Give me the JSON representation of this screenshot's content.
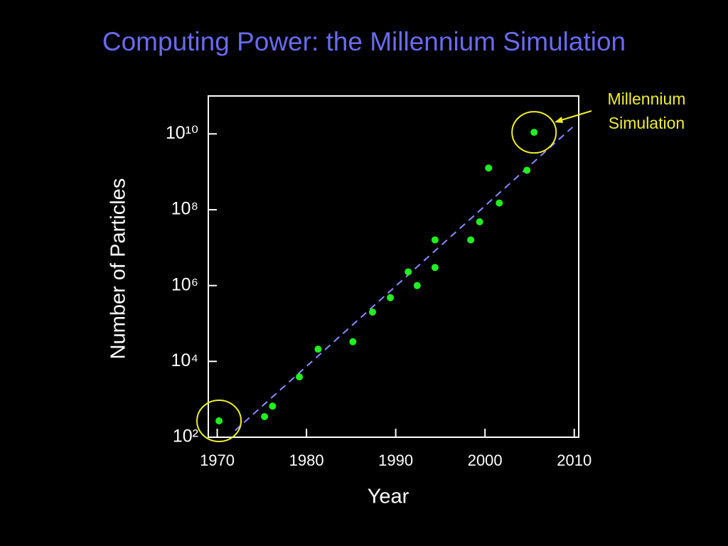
{
  "chart_data": {
    "type": "scatter",
    "title": "Computing Power: the Millennium Simulation",
    "x_label": "Year",
    "y_label": "Number of Particles",
    "yscale": "log",
    "xlim": [
      1969,
      2010.5
    ],
    "ylim": [
      100,
      100000000000
    ],
    "xticks": [
      1970,
      1980,
      1990,
      2000,
      2010
    ],
    "yticks": [
      {
        "value": 100,
        "label": "10²"
      },
      {
        "value": 10000,
        "label": "10⁴"
      },
      {
        "value": 1000000,
        "label": "10⁶"
      },
      {
        "value": 100000000,
        "label": "10⁸"
      },
      {
        "value": 10000000000,
        "label": "10¹⁰"
      }
    ],
    "color": "#22ee22",
    "x": [
      1970.2,
      1975.3,
      1976.2,
      1979.2,
      1981.3,
      1985.2,
      1987.4,
      1989.4,
      1991.4,
      1992.4,
      1994.4,
      1994.4,
      1998.4,
      1999.4,
      2000.4,
      2001.6,
      2004.7,
      2005.5
    ],
    "values": [
      270,
      350,
      660,
      3900,
      21000,
      33000,
      200000,
      480000,
      2300000,
      1000000,
      16000000,
      3000000,
      16000000,
      48000000,
      1260000000,
      150000000,
      1100000000,
      11000000000
    ],
    "trend": {
      "color": "#8c8cff",
      "x": [
        1972.0,
        2009.8
      ],
      "values": [
        150,
        15000000000
      ]
    },
    "annotation": "Millennium Simulation",
    "highlight_color": "#eeee33"
  }
}
